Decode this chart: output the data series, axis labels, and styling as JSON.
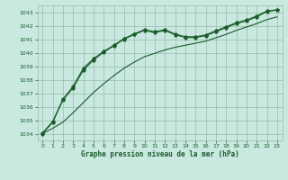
{
  "xlabel": "Graphe pression niveau de la mer (hPa)",
  "background_color": "#c8e8e0",
  "grid_color": "#99bbaa",
  "line_color": "#1a5c2a",
  "x_ticks": [
    0,
    1,
    2,
    3,
    4,
    5,
    6,
    7,
    8,
    9,
    10,
    11,
    12,
    13,
    14,
    15,
    16,
    17,
    18,
    19,
    20,
    21,
    22,
    23
  ],
  "ylim": [
    1033.5,
    1043.5
  ],
  "yticks": [
    1034,
    1035,
    1036,
    1037,
    1038,
    1039,
    1040,
    1041,
    1042,
    1043
  ],
  "y_spiky": [
    1034.0,
    1034.85,
    1036.5,
    1037.4,
    1038.7,
    1039.45,
    1040.05,
    1040.5,
    1041.0,
    1041.35,
    1041.65,
    1041.48,
    1041.65,
    1041.32,
    1041.12,
    1041.12,
    1041.25,
    1041.55,
    1041.85,
    1042.15,
    1042.35,
    1042.65,
    1043.05,
    1043.15
  ],
  "y_lower": [
    1034.0,
    1034.4,
    1034.85,
    1035.55,
    1036.3,
    1037.05,
    1037.7,
    1038.3,
    1038.85,
    1039.3,
    1039.7,
    1039.95,
    1040.2,
    1040.4,
    1040.55,
    1040.7,
    1040.85,
    1041.1,
    1041.35,
    1041.65,
    1041.9,
    1042.15,
    1042.45,
    1042.65
  ],
  "y_upper": [
    1034.05,
    1034.9,
    1036.55,
    1037.5,
    1038.85,
    1039.55,
    1040.1,
    1040.55,
    1041.05,
    1041.4,
    1041.7,
    1041.55,
    1041.7,
    1041.38,
    1041.18,
    1041.18,
    1041.32,
    1041.62,
    1041.92,
    1042.22,
    1042.42,
    1042.72,
    1043.08,
    1043.18
  ]
}
